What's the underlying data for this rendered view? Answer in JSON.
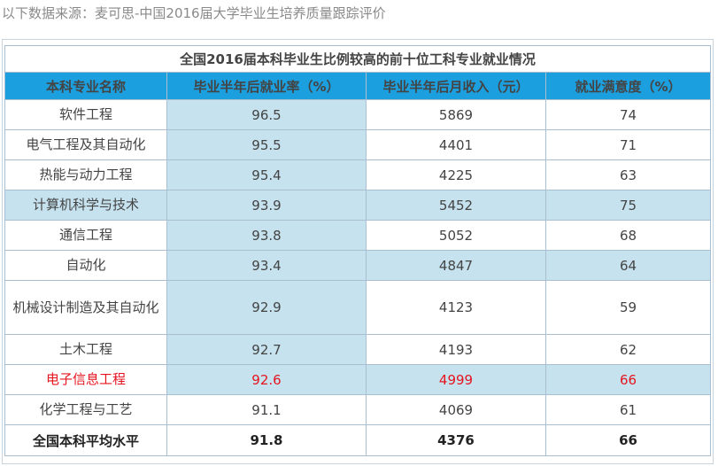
{
  "source_note": "以下数据来源：麦可思-中国2016届大学毕业生培养质量跟踪评价",
  "table": {
    "caption": "全国2016届本科毕业生比例较高的前十位工科专业就业情况",
    "headers": [
      "本科专业名称",
      "毕业半年后就业率（%）",
      "毕业半年后月收入（元）",
      "就业满意度（%）"
    ],
    "rows": [
      {
        "name": "软件工程",
        "employment_rate": "96.5",
        "monthly_income": "5869",
        "satisfaction": "74"
      },
      {
        "name": "电气工程及其自动化",
        "employment_rate": "95.5",
        "monthly_income": "4401",
        "satisfaction": "71"
      },
      {
        "name": "热能与动力工程",
        "employment_rate": "95.4",
        "monthly_income": "4225",
        "satisfaction": "63"
      },
      {
        "name": "计算机科学与技术",
        "employment_rate": "93.9",
        "monthly_income": "5452",
        "satisfaction": "75"
      },
      {
        "name": "通信工程",
        "employment_rate": "93.8",
        "monthly_income": "5052",
        "satisfaction": "68"
      },
      {
        "name": "自动化",
        "employment_rate": "93.4",
        "monthly_income": "4847",
        "satisfaction": "64"
      },
      {
        "name": "机械设计制造及其自动化",
        "employment_rate": "92.9",
        "monthly_income": "4123",
        "satisfaction": "59"
      },
      {
        "name": "土木工程",
        "employment_rate": "92.7",
        "monthly_income": "4193",
        "satisfaction": "62"
      },
      {
        "name": "电子信息工程",
        "employment_rate": "92.6",
        "monthly_income": "4999",
        "satisfaction": "66"
      },
      {
        "name": "化学工程与工艺",
        "employment_rate": "91.1",
        "monthly_income": "4069",
        "satisfaction": "61"
      }
    ],
    "footer": {
      "name": "全国本科平均水平",
      "employment_rate": "91.8",
      "monthly_income": "4376",
      "satisfaction": "66"
    }
  },
  "colors": {
    "header_bg": "#1b9fde",
    "highlight_bg": "#c6e2ee",
    "accent_text": "#e5141e"
  }
}
